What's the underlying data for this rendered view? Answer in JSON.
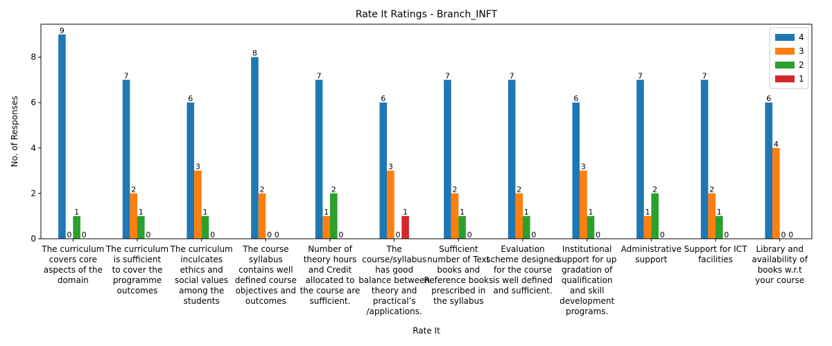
{
  "chart_data": {
    "type": "bar",
    "title": "Rate It Ratings - Branch_INFT",
    "xlabel": "Rate It",
    "ylabel": "No. of Responses",
    "ylim": [
      0,
      9.45
    ],
    "yticks": [
      0,
      2,
      4,
      6,
      8
    ],
    "grid": false,
    "legend_position": "top-right",
    "categories": [
      [
        "The curriculum",
        "covers core",
        "aspects of the",
        "domain"
      ],
      [
        "The curriculum",
        "is sufficient",
        "to cover the",
        "programme",
        "outcomes"
      ],
      [
        "The curriculum",
        "inculcates",
        "ethics and",
        "social values",
        "among the",
        "students"
      ],
      [
        "The course",
        "syllabus",
        "contains well",
        "defined course",
        "objectives and",
        "outcomes"
      ],
      [
        "Number of",
        "theory hours",
        "and Credit",
        "allocated to",
        "the course are",
        "sufficient."
      ],
      [
        "The",
        "course/syllabus",
        "has good",
        "balance between",
        "theory and",
        "practical’s",
        "/applications."
      ],
      [
        "Sufficient",
        "number of Text",
        "books and",
        "Reference books",
        "prescribed in",
        "the syllabus"
      ],
      [
        "Evaluation",
        "scheme designed",
        "for the course",
        "is well defined",
        "and sufficient."
      ],
      [
        "Institutional",
        "support for up",
        "gradation of",
        "qualification",
        "and skill",
        "development",
        "programs."
      ],
      [
        "Administrative",
        "support"
      ],
      [
        "Support for ICT",
        "facilities"
      ],
      [
        "Library and",
        "availability of",
        "books  w.r.t",
        "your course"
      ]
    ],
    "series": [
      {
        "name": "4",
        "color": "#1f77b4",
        "values": [
          9,
          7,
          6,
          8,
          7,
          6,
          7,
          7,
          6,
          7,
          7,
          6
        ]
      },
      {
        "name": "3",
        "color": "#ff7f0e",
        "values": [
          0,
          2,
          3,
          2,
          1,
          3,
          2,
          2,
          3,
          1,
          2,
          4
        ]
      },
      {
        "name": "2",
        "color": "#2ca02c",
        "values": [
          1,
          1,
          1,
          0,
          2,
          0,
          1,
          1,
          1,
          2,
          1,
          0
        ]
      },
      {
        "name": "1",
        "color": "#d62728",
        "values": [
          0,
          0,
          0,
          0,
          0,
          1,
          0,
          0,
          0,
          0,
          0,
          0
        ]
      }
    ],
    "data_labels": [
      [
        "9",
        "0",
        "1",
        "0"
      ],
      [
        "7",
        "2",
        "1",
        "0"
      ],
      [
        "6",
        "3",
        "1",
        "0"
      ],
      [
        "8",
        "2",
        "0",
        "0"
      ],
      [
        "7",
        "1",
        "2",
        "0"
      ],
      [
        "6",
        "3",
        "0",
        "1"
      ],
      [
        "7",
        "2",
        "1",
        "0"
      ],
      [
        "7",
        "2",
        "1",
        "0"
      ],
      [
        "6",
        "3",
        "1",
        "0"
      ],
      [
        "7",
        "1",
        "2",
        "0"
      ],
      [
        "7",
        "2",
        "1",
        "0"
      ],
      [
        "6",
        "4",
        "0",
        "0"
      ]
    ]
  }
}
